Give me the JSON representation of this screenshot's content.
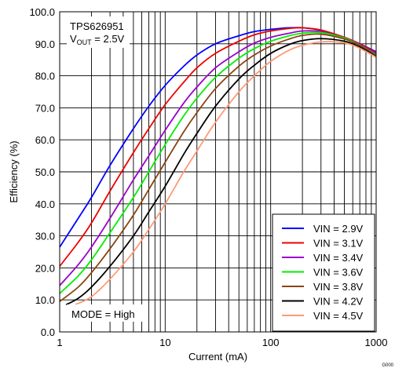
{
  "chart_data": {
    "type": "line",
    "title": "",
    "annotation_lines": [
      "TPS626951",
      "V",
      "OUT",
      " = 2.5V"
    ],
    "mode_label": "MODE = High",
    "figure_code": "G000",
    "xlabel": "Current (mA)",
    "ylabel": "Efficiency (%)",
    "x_scale": "log",
    "xlim": [
      1,
      1000
    ],
    "ylim": [
      0,
      100
    ],
    "x_ticks": [
      1,
      10,
      100,
      1000
    ],
    "x_tick_labels": [
      "1",
      "10",
      "100",
      "1000"
    ],
    "y_ticks": [
      0,
      10,
      20,
      30,
      40,
      50,
      60,
      70,
      80,
      90,
      100
    ],
    "y_tick_labels": [
      "0.0",
      "10.0",
      "20.0",
      "30.0",
      "40.0",
      "50.0",
      "60.0",
      "70.0",
      "80.0",
      "90.0",
      "100.0"
    ],
    "grid": true,
    "legend_position": "bottom-right",
    "series": [
      {
        "name": "VIN = 2.9V",
        "color": "#0000ff",
        "x": [
          1,
          1.5,
          2,
          3,
          5,
          7,
          10,
          15,
          20,
          30,
          50,
          70,
          100,
          150,
          200,
          300,
          500,
          700,
          1000
        ],
        "y": [
          26.5,
          35.5,
          42,
          52,
          63.5,
          70.5,
          77,
          83,
          86.5,
          90,
          92.5,
          93.8,
          94.5,
          95,
          95,
          94.2,
          92,
          90,
          87.5
        ]
      },
      {
        "name": "VIN = 3.1V",
        "color": "#ee0000",
        "x": [
          1,
          1.5,
          2,
          3,
          5,
          7,
          10,
          15,
          20,
          30,
          50,
          70,
          100,
          150,
          200,
          300,
          500,
          700,
          1000
        ],
        "y": [
          20.5,
          28,
          34,
          44,
          56,
          63.5,
          71,
          78,
          82.5,
          87,
          90.8,
          92.8,
          94,
          94.8,
          95,
          94.3,
          92,
          90,
          87.2
        ]
      },
      {
        "name": "VIN = 3.4V",
        "color": "#9900cc",
        "x": [
          1,
          1.5,
          2,
          3,
          5,
          7,
          10,
          15,
          20,
          30,
          50,
          70,
          100,
          150,
          200,
          300,
          500,
          700,
          1000
        ],
        "y": [
          14.5,
          21,
          26.5,
          35.5,
          47.5,
          55,
          63,
          71.5,
          76.5,
          82.5,
          87.5,
          90.2,
          92,
          93.3,
          94,
          93.8,
          91.8,
          89.8,
          86.8
        ]
      },
      {
        "name": "VIN = 3.6V",
        "color": "#00ee00",
        "x": [
          1,
          1.5,
          2,
          3,
          5,
          7,
          10,
          15,
          20,
          30,
          50,
          70,
          100,
          150,
          200,
          300,
          500,
          700,
          1000
        ],
        "y": [
          12,
          17.5,
          22.5,
          31,
          42,
          50,
          58.5,
          67.5,
          73,
          79.5,
          85.5,
          88.5,
          90.8,
          92.5,
          93.3,
          93.5,
          91.8,
          89.6,
          86.5
        ]
      },
      {
        "name": "VIN = 3.8V",
        "color": "#884411",
        "x": [
          1,
          1.5,
          2,
          3,
          5,
          7,
          10,
          15,
          20,
          30,
          50,
          70,
          100,
          150,
          200,
          300,
          500,
          700,
          1000
        ],
        "y": [
          9.5,
          14,
          18.5,
          26,
          36.5,
          44.5,
          53,
          62.5,
          68.5,
          76,
          83,
          86.5,
          89.3,
          91.5,
          92.6,
          93,
          91.5,
          89.5,
          86.3
        ]
      },
      {
        "name": "VIN = 4.2V",
        "color": "#000000",
        "x": [
          1.15,
          1.5,
          2,
          3,
          5,
          7,
          10,
          15,
          20,
          30,
          50,
          70,
          100,
          150,
          200,
          300,
          500,
          700,
          1000
        ],
        "y": [
          8.5,
          10.5,
          14,
          20.5,
          30,
          37.5,
          45.5,
          55.5,
          62,
          70.5,
          79,
          83.3,
          87,
          89.8,
          91,
          91.6,
          90.8,
          89,
          86
        ]
      },
      {
        "name": "VIN = 4.5V",
        "color": "#ff9977",
        "x": [
          1.4,
          2,
          3,
          5,
          7,
          10,
          15,
          20,
          30,
          50,
          70,
          100,
          150,
          200,
          300,
          500,
          700,
          1000
        ],
        "y": [
          8.5,
          11,
          16.5,
          25,
          32,
          40,
          50,
          56.5,
          65.5,
          75,
          80,
          84.5,
          88,
          89.5,
          90.6,
          90.3,
          88.6,
          85.8
        ]
      }
    ]
  }
}
